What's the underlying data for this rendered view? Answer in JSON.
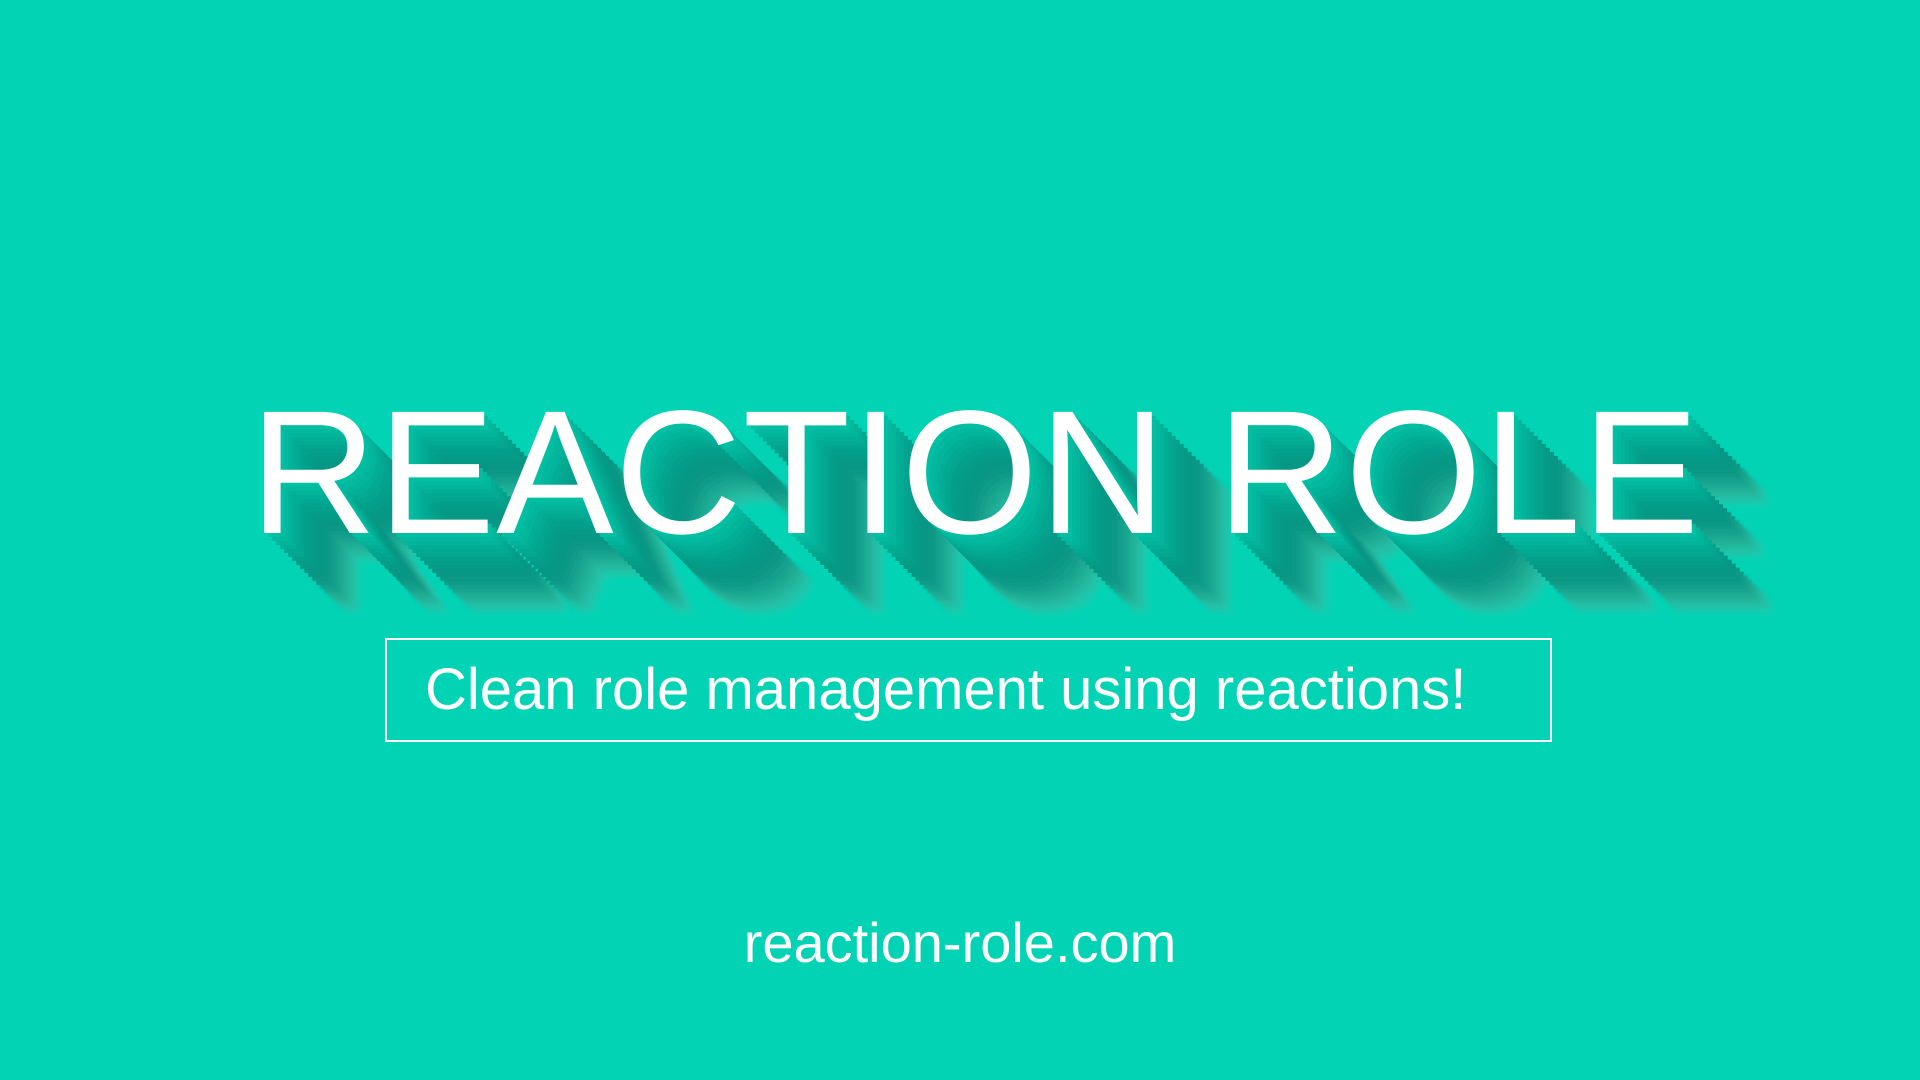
{
  "banner": {
    "title": "REACTION ROLE",
    "tagline": "Clean role management using reactions!",
    "url": "reaction-role.com"
  },
  "colors": {
    "background": "#03d3b5",
    "text": "#ffffff",
    "shadow": "#069884"
  }
}
